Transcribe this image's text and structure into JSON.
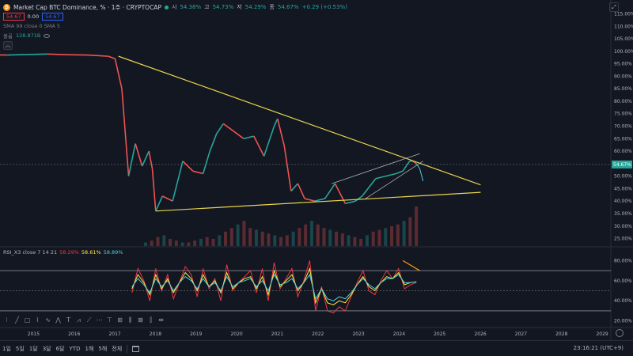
{
  "header": {
    "symbol_title": "Market Cap BTC Dominance, %  · 1주 · CRYPTOCAP",
    "btc_logo": "₿",
    "open_label": "시",
    "open_value": "54.38%",
    "high_label": "고",
    "high_value": "54.73%",
    "low_label": "저",
    "low_value": "54.29%",
    "close_label": "종",
    "close_value": "54.67%",
    "change": "+0.29 (+0.53%)",
    "sell_price": "54.67",
    "spread": "0.00",
    "buy_price": "54.67",
    "sma_text": "SMA 99 close 0 SMA 5",
    "volume_label": "볼륨",
    "volume_value": "128.871B",
    "collapse_glyph": "︿",
    "top_right_glyph": "⤢"
  },
  "rsi_legend": {
    "name": "RSI_X3 close 7 14 21",
    "v1": "58.29%",
    "v2": "58.61%",
    "v3": "58.89%"
  },
  "bottom_bar": {
    "timeframes": [
      "1일",
      "5일",
      "1달",
      "3달",
      "6달",
      "YTD",
      "1해",
      "5해",
      "전체"
    ],
    "clock": "23:16:21 (UTC+9)"
  },
  "toolbar_icons": [
    "dots-icon",
    "line-icon",
    "rect-icon",
    "path-icon",
    "brush-icon",
    "zigzag-icon",
    "text-icon",
    "pattern-icon",
    "forecast-icon",
    "measure-icon",
    "fib-icon",
    "ruler-icon",
    "pitchfork-icon",
    "range-icon",
    "bars-icon",
    "expand-icon"
  ],
  "colors": {
    "background": "#131722",
    "up": "#26a69a",
    "down": "#ef5350",
    "trendline": "#e8d44d",
    "channel": "#b2b5be",
    "forecast": "#4dd0e1",
    "rsi_fast": "#f23645",
    "rsi_mid": "#ffeb3b",
    "rsi_slow": "#4dd0e1",
    "rsi_warning_line": "#ff9800"
  },
  "chart_data": [
    {
      "type": "line",
      "title": "Market Cap BTC Dominance, %",
      "y_scale": "percent",
      "ylim": [
        22,
        118
      ],
      "x_range": [
        "2014-03",
        "2029-03"
      ],
      "x_ticks": [
        "2015",
        "2016",
        "2017",
        "2018",
        "2019",
        "2020",
        "2021",
        "2022",
        "2023",
        "2024",
        "2025",
        "2026",
        "2027",
        "2028",
        "2029"
      ],
      "y_ticks": [
        "25.00%",
        "30.00%",
        "35.00%",
        "40.00%",
        "45.00%",
        "50.00%",
        "55.00%",
        "60.00%",
        "65.00%",
        "70.00%",
        "75.00%",
        "80.00%",
        "85.00%",
        "90.00%",
        "95.00%",
        "100.00%",
        "105.00%",
        "110.00%",
        "115.00%"
      ],
      "current_value": "54.67%",
      "dominance_series": {
        "name": "BTC Dominance",
        "points": [
          [
            "2013-05",
            99.2
          ],
          [
            "2013-11",
            98.6
          ],
          [
            "2014-05",
            98.5
          ],
          [
            "2014-11",
            98.7
          ],
          [
            "2015-05",
            98.9
          ],
          [
            "2015-11",
            98.6
          ],
          [
            "2016-05",
            98.5
          ],
          [
            "2016-11",
            98.0
          ],
          [
            "2017-01",
            97.0
          ],
          [
            "2017-03",
            85.0
          ],
          [
            "2017-05",
            50.0
          ],
          [
            "2017-07",
            63.0
          ],
          [
            "2017-09",
            54.0
          ],
          [
            "2017-11",
            60.0
          ],
          [
            "2017-12",
            53.0
          ],
          [
            "2018-01",
            36.0
          ],
          [
            "2018-03",
            42.0
          ],
          [
            "2018-06",
            40.0
          ],
          [
            "2018-09",
            56.0
          ],
          [
            "2018-12",
            52.0
          ],
          [
            "2019-03",
            51.0
          ],
          [
            "2019-05",
            60.0
          ],
          [
            "2019-07",
            67.0
          ],
          [
            "2019-09",
            71.0
          ],
          [
            "2019-12",
            68.0
          ],
          [
            "2020-03",
            65.0
          ],
          [
            "2020-06",
            66.0
          ],
          [
            "2020-09",
            58.0
          ],
          [
            "2020-12",
            70.0
          ],
          [
            "2021-01",
            73.0
          ],
          [
            "2021-03",
            62.0
          ],
          [
            "2021-05",
            44.0
          ],
          [
            "2021-07",
            47.0
          ],
          [
            "2021-09",
            41.0
          ],
          [
            "2021-12",
            40.0
          ],
          [
            "2022-03",
            41.0
          ],
          [
            "2022-06",
            47.0
          ],
          [
            "2022-09",
            39.0
          ],
          [
            "2022-12",
            40.0
          ],
          [
            "2023-02",
            42.0
          ],
          [
            "2023-06",
            49.0
          ],
          [
            "2023-09",
            50.0
          ],
          [
            "2023-12",
            51.0
          ],
          [
            "2024-02",
            52.0
          ],
          [
            "2024-04",
            56.0
          ],
          [
            "2024-05",
            56.0
          ],
          [
            "2024-06",
            55.0
          ]
        ]
      },
      "forecast_series": {
        "points": [
          [
            "2024-06",
            55.0
          ],
          [
            "2024-07",
            53.0
          ],
          [
            "2024-08",
            48.0
          ]
        ]
      },
      "trendlines": [
        {
          "from": [
            "2017-02",
            98.0
          ],
          "to": [
            "2026-01",
            46.5
          ]
        },
        {
          "from": [
            "2018-01",
            36.0
          ],
          "to": [
            "2026-01",
            43.5
          ]
        },
        {
          "from": [
            "2022-05",
            47.0
          ],
          "to": [
            "2024-07",
            59.0
          ]
        },
        {
          "from": [
            "2023-03",
            41.0
          ],
          "to": [
            "2024-08",
            56.0
          ]
        }
      ],
      "volume": {
        "label": "볼륨",
        "start": "2017-10",
        "end": "2024-06",
        "values": [
          2,
          3,
          5,
          6,
          4,
          3,
          2,
          2,
          3,
          4,
          5,
          4,
          6,
          8,
          10,
          12,
          14,
          10,
          9,
          8,
          7,
          6,
          5,
          6,
          8,
          10,
          12,
          14,
          12,
          10,
          9,
          8,
          7,
          6,
          5,
          4,
          6,
          8,
          9,
          10,
          11,
          12,
          14,
          16,
          22
        ]
      }
    },
    {
      "type": "line",
      "title": "RSI_X3 close 7 14 21",
      "ylim": [
        15,
        85
      ],
      "y_ticks": [
        "20.00%",
        "40.00%",
        "60.00%",
        "80.00%"
      ],
      "bands": [
        70,
        50,
        30
      ],
      "series": [
        {
          "name": "RSI 7",
          "color": "#f23645",
          "values": [
            48,
            72,
            60,
            40,
            72,
            50,
            66,
            42,
            58,
            74,
            66,
            44,
            72,
            52,
            62,
            40,
            76,
            50,
            58,
            64,
            70,
            48,
            72,
            40,
            78,
            52,
            62,
            72,
            44,
            60,
            80,
            30,
            54,
            30,
            28,
            34,
            30,
            44,
            58,
            70,
            50,
            46,
            60,
            70,
            62,
            72,
            52,
            56,
            58
          ]
        },
        {
          "name": "RSI 14",
          "color": "#ffeb3b",
          "values": [
            52,
            66,
            58,
            46,
            66,
            52,
            62,
            48,
            58,
            68,
            62,
            50,
            66,
            54,
            60,
            48,
            68,
            52,
            58,
            62,
            64,
            52,
            64,
            46,
            70,
            54,
            60,
            66,
            50,
            58,
            72,
            38,
            52,
            38,
            36,
            40,
            38,
            46,
            56,
            64,
            54,
            50,
            58,
            64,
            62,
            68,
            56,
            58,
            59
          ]
        },
        {
          "name": "RSI 21",
          "color": "#4dd0e1",
          "values": [
            54,
            62,
            56,
            48,
            62,
            54,
            60,
            50,
            58,
            64,
            60,
            52,
            62,
            54,
            58,
            50,
            64,
            54,
            58,
            60,
            62,
            54,
            60,
            50,
            66,
            56,
            58,
            62,
            52,
            58,
            66,
            42,
            52,
            42,
            40,
            44,
            42,
            48,
            56,
            62,
            56,
            52,
            58,
            62,
            62,
            66,
            58,
            58,
            59
          ]
        }
      ]
    }
  ]
}
